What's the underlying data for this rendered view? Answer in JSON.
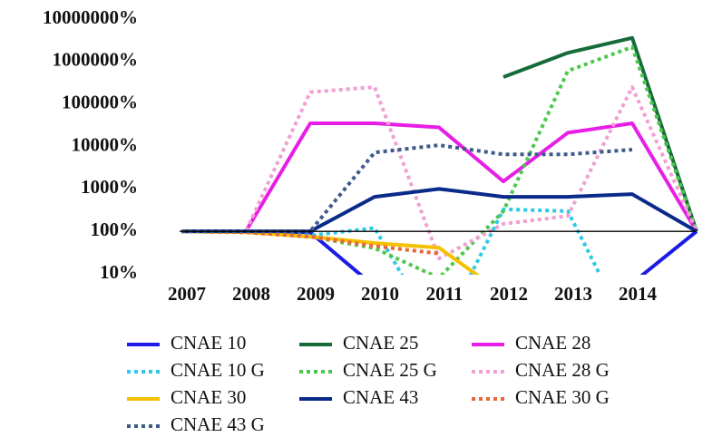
{
  "chart_data": {
    "type": "line",
    "log_scale": true,
    "grid": false,
    "xaxis_crosses": 100,
    "categories": [
      "2007",
      "2008",
      "2009",
      "2010",
      "2011",
      "2012",
      "2013",
      "2014",
      null
    ],
    "ylim": [
      10,
      10000000
    ],
    "yticks": [
      {
        "value": 10,
        "label": "10%"
      },
      {
        "value": 100,
        "label": "100%"
      },
      {
        "value": 1000,
        "label": "1000%"
      },
      {
        "value": 10000,
        "label": "10000%"
      },
      {
        "value": 100000,
        "label": "100000%"
      },
      {
        "value": 1000000,
        "label": "1000000%"
      },
      {
        "value": 10000000,
        "label": "10000000%"
      }
    ],
    "legend": "bottom",
    "series": [
      {
        "name": "CNAE 10",
        "color": "#1c1ce6",
        "dash": "solid",
        "values": [
          100,
          100,
          95,
          5,
          null,
          null,
          null,
          6,
          100
        ]
      },
      {
        "name": "CNAE 25",
        "color": "#176b3a",
        "dash": "solid",
        "values": [
          null,
          null,
          null,
          null,
          null,
          430000,
          1600000,
          3600000,
          100
        ]
      },
      {
        "name": "CNAE 28",
        "color": "#e61ee6",
        "dash": "solid",
        "values": [
          100,
          100,
          35000,
          35000,
          28000,
          1500,
          21000,
          35000,
          100
        ]
      },
      {
        "name": "CNAE 10 G",
        "color": "#2ec8e8",
        "dash": "dotted",
        "values": [
          100,
          95,
          80,
          120,
          0.3,
          330,
          300,
          0.3,
          null
        ]
      },
      {
        "name": "CNAE 25 G",
        "color": "#4cc84c",
        "dash": "dotted",
        "values": [
          100,
          95,
          75,
          40,
          8,
          300,
          600000,
          2200000,
          100
        ]
      },
      {
        "name": "CNAE 28 G",
        "color": "#f0a0d2",
        "dash": "dotted",
        "values": [
          100,
          100,
          190000,
          250000,
          23,
          150,
          230,
          250000,
          100
        ]
      },
      {
        "name": "CNAE 30",
        "color": "#f5c000",
        "dash": "solid",
        "values": [
          100,
          95,
          75,
          53,
          41,
          3.4,
          null,
          null,
          null
        ]
      },
      {
        "name": "CNAE 43",
        "color": "#0a2a8a",
        "dash": "solid",
        "values": [
          100,
          100,
          100,
          650,
          1000,
          650,
          650,
          750,
          100
        ]
      },
      {
        "name": "CNAE 30 G",
        "color": "#e8663a",
        "dash": "dotted",
        "values": [
          100,
          95,
          75,
          45,
          30,
          null,
          null,
          null,
          null
        ]
      },
      {
        "name": "CNAE 43 G",
        "color": "#3d5a8c",
        "dash": "dotted",
        "values": [
          100,
          100,
          100,
          7200,
          10700,
          6500,
          6500,
          8400,
          null
        ]
      }
    ]
  }
}
